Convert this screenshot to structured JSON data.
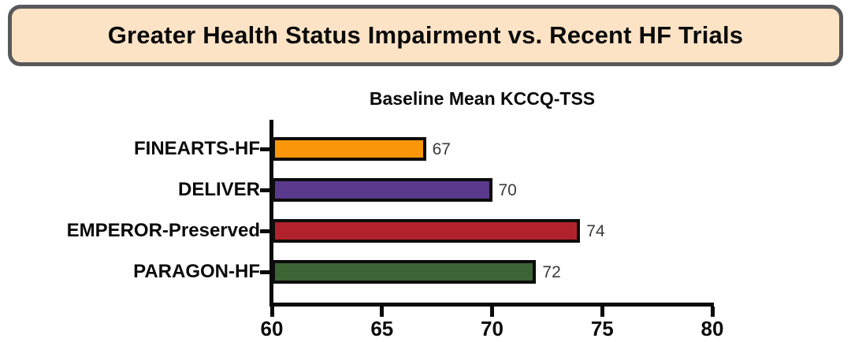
{
  "header": {
    "title": "Greater Health Status Impairment vs. Recent HF Trials",
    "background_color": "#FCE3C5",
    "border_color": "#58595B"
  },
  "chart_data": {
    "type": "bar",
    "orientation": "horizontal",
    "title": "Baseline Mean KCCQ-TSS",
    "categories": [
      "FINEARTS-HF",
      "DELIVER",
      "EMPEROR-Preserved",
      "PARAGON-HF"
    ],
    "values": [
      67,
      70,
      74,
      72
    ],
    "colors": [
      "#FA9609",
      "#5A3A8C",
      "#B2222C",
      "#3D6435"
    ],
    "bar_border_color": "#0c0c0c",
    "xlim": [
      60,
      80
    ],
    "xticks": [
      60,
      65,
      70,
      75,
      80
    ],
    "grid": false,
    "legend": false
  }
}
